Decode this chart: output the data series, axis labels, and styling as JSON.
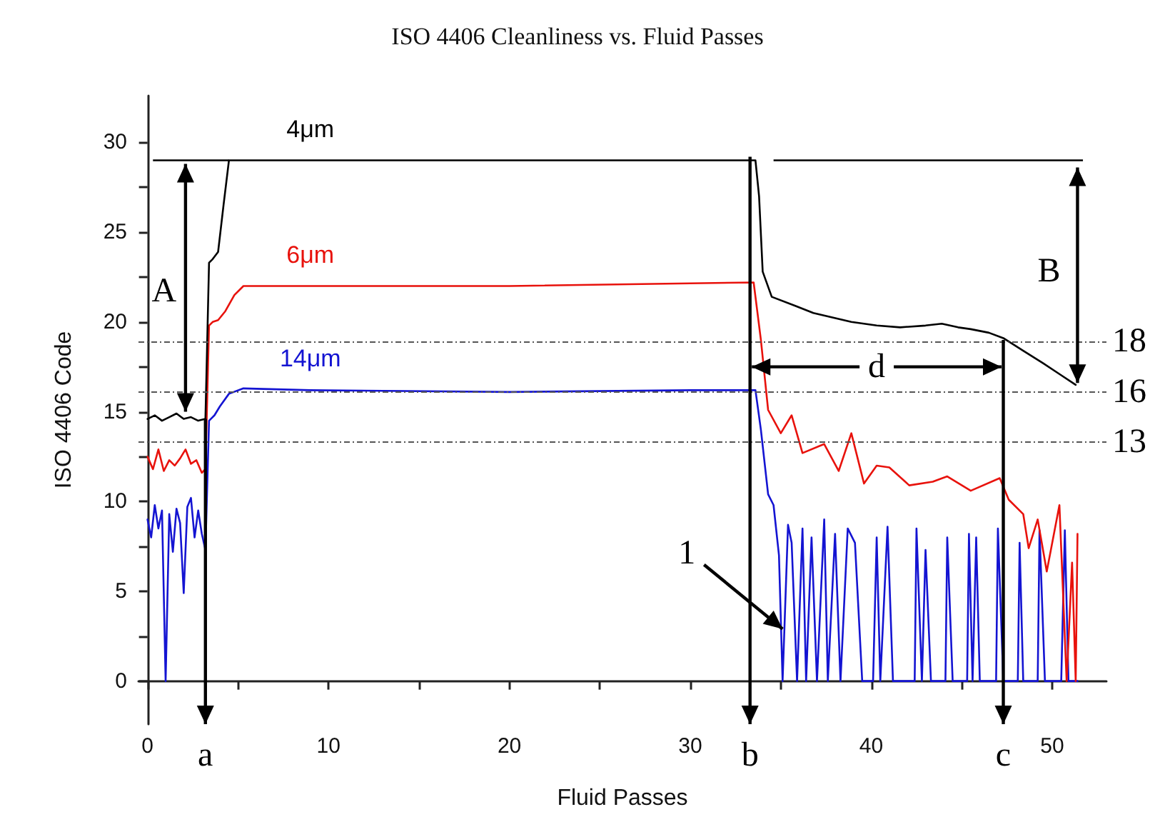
{
  "chart_data": {
    "type": "line",
    "title": "ISO 4406 Cleanliness vs. Fluid Passes",
    "xlabel": "Fluid Passes",
    "ylabel": "ISO 4406 Code",
    "xlim": [
      -0.5,
      53
    ],
    "ylim": [
      -2.4,
      32.6
    ],
    "xticks": [
      0,
      {
        "value": 5,
        "label": null
      },
      10,
      {
        "value": 15,
        "label": null
      },
      20,
      {
        "value": 25,
        "label": null
      },
      30,
      {
        "value": 35,
        "label": null
      },
      40,
      {
        "value": 45,
        "label": null
      },
      50
    ],
    "yticks": [
      0,
      {
        "value": 2.5,
        "label": null
      },
      5,
      {
        "value": 7.5,
        "label": null
      },
      10,
      {
        "value": 12.5,
        "label": null
      },
      15,
      {
        "value": 17.5,
        "label": null
      },
      20,
      {
        "value": 22.5,
        "label": null
      },
      25,
      {
        "value": 27.5,
        "label": null
      },
      30
    ],
    "grid": false,
    "legend": false,
    "marker": "none",
    "line_style": "solid",
    "series": [
      {
        "name": "4μm",
        "color": "#000000",
        "x": [
          0,
          0.4,
          0.8,
          1.2,
          1.6,
          2.0,
          2.4,
          2.8,
          3.2,
          3.4,
          3.6,
          3.9,
          4.2,
          4.5,
          9,
          20,
          33.6,
          33.8,
          34.0,
          34.5,
          35.8,
          36.8,
          38.9,
          40.3,
          41.6,
          43.0,
          43.9,
          44.8,
          45.5,
          46.5,
          47.3,
          48.4,
          49.5,
          50.4,
          51.3
        ],
        "values": [
          14.6,
          14.8,
          14.5,
          14.7,
          14.9,
          14.6,
          14.7,
          14.5,
          14.6,
          23.3,
          23.5,
          23.9,
          26.5,
          29,
          29,
          29,
          29,
          27,
          22.8,
          21.4,
          20.9,
          20.5,
          20.0,
          19.8,
          19.7,
          19.8,
          19.9,
          19.7,
          19.6,
          19.4,
          19.1,
          18.4,
          17.7,
          17.1,
          16.5
        ]
      },
      {
        "name": "6μm",
        "color": "#e8120c",
        "x": [
          0,
          0.3,
          0.6,
          0.9,
          1.2,
          1.5,
          1.8,
          2.1,
          2.4,
          2.7,
          3.0,
          3.2,
          3.4,
          3.6,
          3.9,
          4.3,
          4.8,
          5.3,
          9,
          20,
          33.5,
          33.9,
          34.3,
          35.0,
          35.6,
          36.2,
          37.4,
          38.2,
          38.9,
          39.6,
          40.3,
          41.0,
          42.1,
          43.4,
          44.2,
          45.5,
          47.1,
          47.6,
          48.4,
          48.7,
          49.2,
          49.7,
          50.4,
          50.8,
          51.1,
          51.3,
          51.4
        ],
        "values": [
          12.5,
          11.8,
          12.9,
          11.7,
          12.3,
          12.0,
          12.4,
          12.9,
          12.1,
          12.3,
          11.6,
          11.8,
          19.8,
          20.0,
          20.1,
          20.6,
          21.5,
          22,
          22,
          22,
          22.2,
          19,
          15.1,
          13.8,
          14.8,
          12.7,
          13.2,
          11.7,
          13.8,
          11.0,
          12.0,
          11.9,
          10.9,
          11.1,
          11.4,
          10.6,
          11.3,
          10.1,
          9.3,
          7.4,
          9.0,
          6.1,
          9.8,
          0,
          6.6,
          0,
          8.2
        ]
      },
      {
        "name": "14μm",
        "color": "#1414d2",
        "x": [
          0,
          0.2,
          0.4,
          0.6,
          0.8,
          1.0,
          1.2,
          1.4,
          1.6,
          1.8,
          2.0,
          2.2,
          2.4,
          2.6,
          2.8,
          3.0,
          3.2,
          3.4,
          3.7,
          4.0,
          4.5,
          5.3,
          9,
          20,
          30,
          33.6,
          33.9,
          34.3,
          34.6,
          34.9,
          35.1,
          35.4,
          35.6,
          35.9,
          36.2,
          36.4,
          36.7,
          37.0,
          37.4,
          37.6,
          38.0,
          38.3,
          38.7,
          39.1,
          39.5,
          40.1,
          40.3,
          40.5,
          40.9,
          41.2,
          42.4,
          42.5,
          42.8,
          43.0,
          43.3,
          44.1,
          44.2,
          44.5,
          45.3,
          45.4,
          45.6,
          45.8,
          46.0,
          46.9,
          47.0,
          47.3,
          48.1,
          48.2,
          48.4,
          49.2,
          49.3,
          49.6,
          50.5,
          50.7,
          50.9,
          51.4
        ],
        "values": [
          9.0,
          8.0,
          9.8,
          8.5,
          9.5,
          0,
          9.3,
          7.2,
          9.6,
          8.8,
          4.9,
          9.7,
          10.2,
          8.0,
          9.5,
          8.2,
          7.3,
          14.5,
          14.8,
          15.3,
          16.0,
          16.3,
          16.2,
          16.1,
          16.2,
          16.2,
          14.0,
          10.4,
          9.8,
          7.0,
          0,
          8.7,
          7.7,
          0,
          8.5,
          0,
          8.0,
          0,
          9.0,
          0,
          8.2,
          0,
          8.5,
          7.7,
          0,
          0,
          8.0,
          0,
          8.6,
          0,
          0,
          8.5,
          0,
          7.3,
          0,
          0,
          8.0,
          0,
          0,
          8.2,
          0,
          8.0,
          0,
          0,
          8.5,
          0,
          0,
          7.7,
          0,
          0,
          8.4,
          0,
          0,
          8.4,
          0,
          0
        ]
      }
    ],
    "ref_lines": [
      {
        "axis": "y",
        "value": 18.9,
        "color": "#555555",
        "line_style": "dotted"
      },
      {
        "axis": "y",
        "value": 16.1,
        "color": "#555555",
        "line_style": "dotted"
      },
      {
        "axis": "y",
        "value": 13.3,
        "color": "#555555",
        "line_style": "dotted"
      }
    ],
    "annotations": [
      "A",
      "B",
      "d",
      {
        "text": "1",
        "x": 35.1,
        "y": 2.9
      },
      {
        "text": "a",
        "x": 3.2
      },
      {
        "text": "b",
        "x": 33.3
      },
      {
        "text": "c",
        "x": 47.3
      },
      {
        "text": "18",
        "x": 53,
        "y": 18.9
      },
      {
        "text": "16",
        "x": 53,
        "y": 16.1
      },
      {
        "text": "13",
        "x": 53,
        "y": 13.3
      }
    ]
  }
}
